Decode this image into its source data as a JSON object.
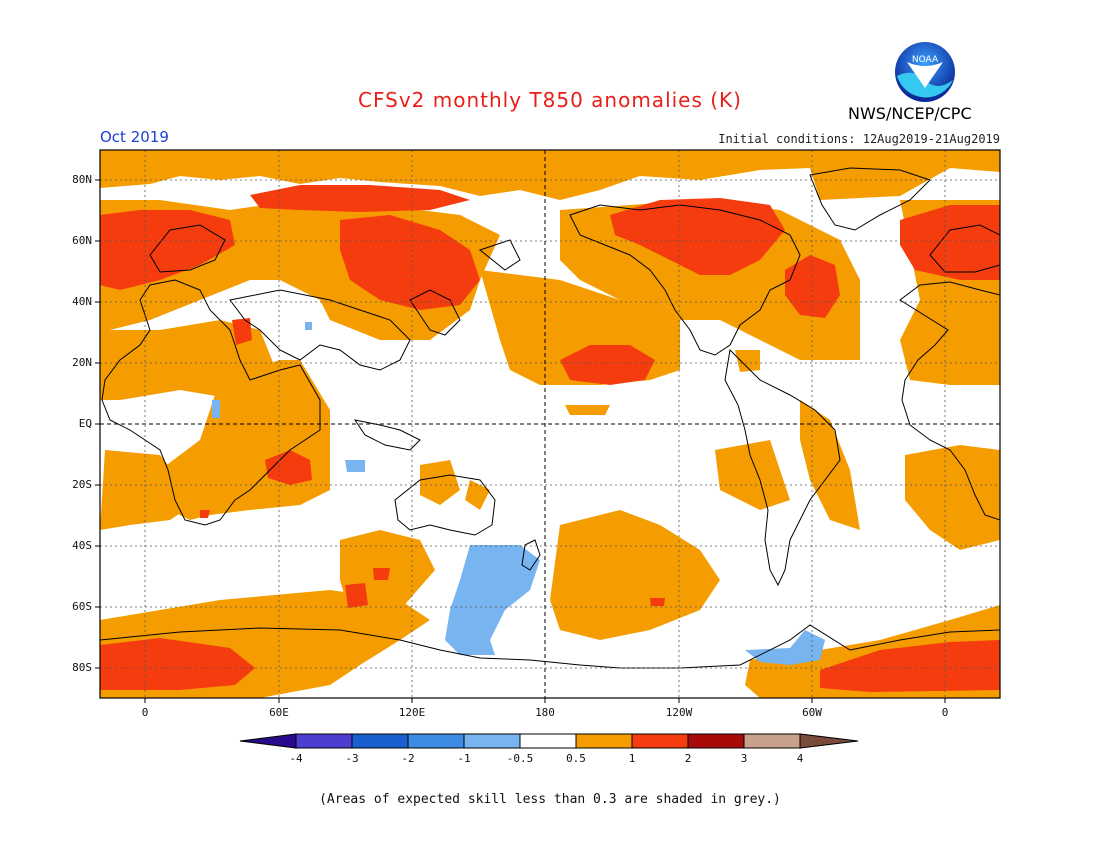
{
  "title": "CFSv2 monthly T850 anomalies (K)",
  "period": "Oct 2019",
  "initial_conditions": "Initial conditions: 12Aug2019-21Aug2019",
  "agency": "NWS/NCEP/CPC",
  "logo_text": "NOAA",
  "footnote": "(Areas of expected skill less than 0.3 are shaded in grey.)",
  "map": {
    "lat_labels": [
      "80N",
      "60N",
      "40N",
      "20N",
      "EQ",
      "20S",
      "40S",
      "60S",
      "80S"
    ],
    "lon_labels": [
      "0",
      "60E",
      "120E",
      "180",
      "120W",
      "60W",
      "0"
    ],
    "colors": {
      "cold_light": "#78b4f0",
      "warm_1": "#f59d00",
      "warm_2": "#f53c0f"
    }
  },
  "colorbar": {
    "ticks": [
      "-4",
      "-3",
      "-2",
      "-1",
      "-0.5",
      "0.5",
      "1",
      "2",
      "3",
      "4"
    ],
    "colors": [
      "#2a0a8c",
      "#4b3ed0",
      "#1a5fcf",
      "#3c8ce6",
      "#78b4f0",
      "#ffffff",
      "#f59d00",
      "#f53c0f",
      "#a80a0a",
      "#c9a08a",
      "#7a4a3a"
    ]
  }
}
